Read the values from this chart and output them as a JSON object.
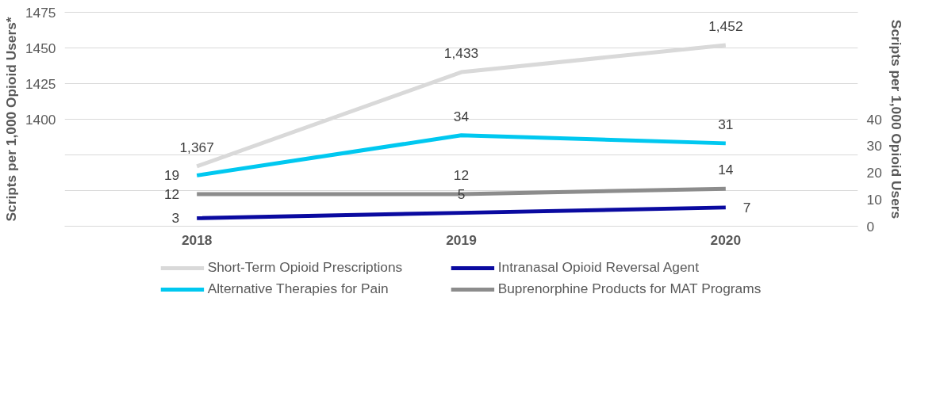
{
  "chart_data": {
    "type": "line",
    "categories": [
      "2018",
      "2019",
      "2020"
    ],
    "ylabel": "Scripts per 1,000 Opioid Users*",
    "y2label": "Scripts per 1,000 Opioid Users",
    "ylim": [
      1325,
      1475
    ],
    "yticks": [
      {
        "value": 1325,
        "label": null
      },
      {
        "value": 1350,
        "label": null
      },
      {
        "value": 1375,
        "label": null
      },
      1400,
      1425,
      1450,
      1475
    ],
    "y2lim": [
      0,
      80
    ],
    "y2ticks": [
      0,
      10,
      20,
      30,
      40
    ],
    "series": [
      {
        "name": "Short-Term Opioid Prescriptions",
        "color": "#d9d9d9",
        "values": [
          1367,
          1433,
          1452
        ],
        "value_labels": [
          "1,367",
          "1,433",
          "1,452"
        ]
      },
      {
        "name": "Intranasal Opioid Reversal Agent",
        "color": "#0a0aa0",
        "values": [
          3,
          5,
          7
        ],
        "axis": "y2",
        "value_labels": [
          "3",
          "5",
          "7"
        ]
      },
      {
        "name": "Alternative Therapies for Pain",
        "color": "#00c8f0",
        "values": [
          19,
          34,
          31
        ],
        "axis": "y2",
        "value_labels": [
          "19",
          "34",
          "31"
        ]
      },
      {
        "name": "Buprenorphine Products for MAT Programs",
        "color": "#8c8c8c",
        "values": [
          12,
          12,
          14
        ],
        "axis": "y2",
        "value_labels": [
          "12",
          "12",
          "14"
        ]
      }
    ],
    "grid": "y",
    "legend": "bottom",
    "marker": "none",
    "line_style": "solid"
  }
}
